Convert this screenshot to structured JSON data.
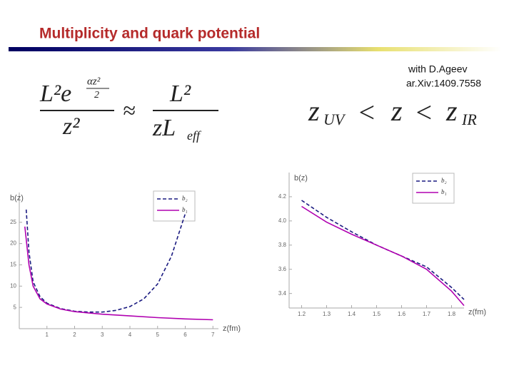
{
  "header": {
    "title": "Multiplicity and quark potential",
    "note": [
      "with D.Ageev",
      "ar.Xiv:1409.7558"
    ]
  },
  "formulas": {
    "left": {
      "lhs_num": "L²e",
      "lhs_exp_num": "αz²",
      "lhs_exp_den": "2",
      "lhs_den": "z²",
      "approx": "≈",
      "rhs_num": "L²",
      "rhs_den": "zL",
      "rhs_den_sub": "eff"
    },
    "right": [
      "z",
      "UV",
      "<",
      "z",
      "<",
      "z",
      "IR"
    ]
  },
  "chart_data": [
    {
      "type": "line",
      "ylabel": "b(z)",
      "xlabel": "z(fm)",
      "xlim": [
        0,
        7.2
      ],
      "ylim": [
        0,
        32
      ],
      "xticks": [
        1,
        2,
        3,
        4,
        5,
        6,
        7
      ],
      "yticks": [
        5,
        10,
        15,
        20,
        25
      ],
      "grid": false,
      "legend": "top-right",
      "series": [
        {
          "name": "b₂",
          "color": "#1a1a80",
          "dashed": true,
          "x": [
            0.25,
            0.35,
            0.5,
            0.75,
            1,
            1.5,
            2,
            2.5,
            3,
            3.5,
            4,
            4.5,
            5,
            5.5,
            6
          ],
          "values": [
            28,
            18,
            11,
            7.5,
            6,
            4.7,
            4.1,
            3.9,
            3.9,
            4.3,
            5.2,
            7,
            10.5,
            17,
            27
          ]
        },
        {
          "name": "b₁",
          "color": "#b000b0",
          "dashed": false,
          "x": [
            0.2,
            0.35,
            0.5,
            0.75,
            1,
            1.5,
            2,
            3,
            4,
            5,
            6,
            7
          ],
          "values": [
            24,
            15,
            10,
            7,
            5.8,
            4.6,
            4,
            3.4,
            3,
            2.6,
            2.3,
            2.1
          ]
        }
      ]
    },
    {
      "type": "line",
      "ylabel": "b(z)",
      "xlabel": "z(fm)",
      "xlim": [
        1.15,
        1.85
      ],
      "ylim": [
        3.28,
        4.4
      ],
      "xticks": [
        1.2,
        1.3,
        1.4,
        1.5,
        1.6,
        1.7,
        1.8
      ],
      "yticks": [
        3.4,
        3.6,
        3.8,
        {
          "value": 4,
          "label": "4.0"
        },
        4.2
      ],
      "grid": false,
      "legend": "top-right",
      "series": [
        {
          "name": "b₂",
          "color": "#1a1a80",
          "dashed": true,
          "x": [
            1.2,
            1.3,
            1.4,
            1.5,
            1.6,
            1.7,
            1.8,
            1.85
          ],
          "values": [
            4.17,
            4.03,
            3.91,
            3.8,
            3.71,
            3.62,
            3.45,
            3.35
          ]
        },
        {
          "name": "b₁",
          "color": "#b000b0",
          "dashed": false,
          "x": [
            1.2,
            1.3,
            1.4,
            1.5,
            1.6,
            1.7,
            1.8,
            1.85
          ],
          "values": [
            4.12,
            3.99,
            3.89,
            3.8,
            3.71,
            3.6,
            3.42,
            3.3
          ]
        }
      ]
    }
  ]
}
